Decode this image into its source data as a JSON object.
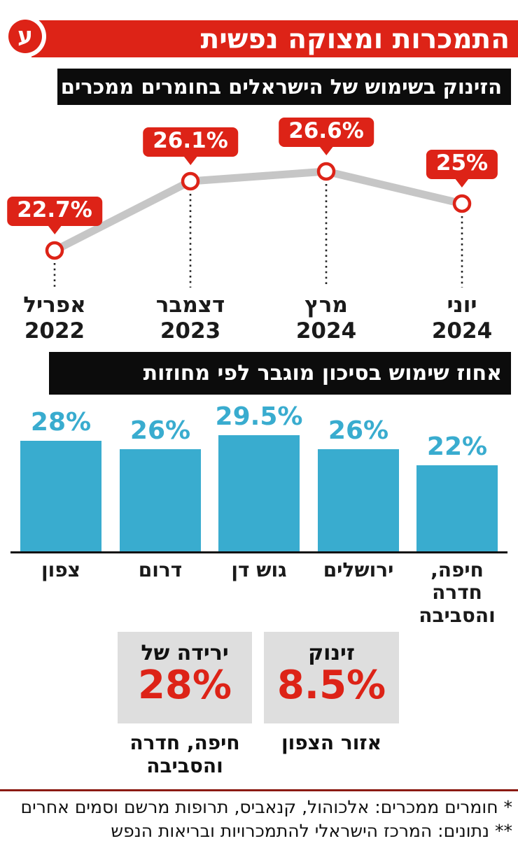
{
  "brand": {
    "logo_glyph": "ע",
    "title": "התמכרות ומצוקה נפשית"
  },
  "colors": {
    "red": "#dd2317",
    "dark_red": "#8b1a12",
    "blue": "#39accf",
    "line_gray": "#c6c6c6",
    "box_gray": "#dedede"
  },
  "chart_data": [
    {
      "type": "line",
      "title": "הזינוק בשימוש של הישראלים בחומרים ממכרים",
      "x": [
        "אפריל 2022",
        "דצמבר 2023",
        "מרץ 2024",
        "יוני 2024"
      ],
      "x_labels": [
        {
          "month": "אפריל",
          "year": "2022"
        },
        {
          "month": "דצמבר",
          "year": "2023"
        },
        {
          "month": "מרץ",
          "year": "2024"
        },
        {
          "month": "יוני",
          "year": "2024"
        }
      ],
      "values": [
        22.7,
        26.1,
        26.6,
        25
      ],
      "point_labels": [
        "22.7%",
        "26.1%",
        "26.6%",
        "25%"
      ],
      "ylim": [
        20,
        30
      ],
      "grid": false,
      "legend": "none",
      "marker": "circle-red-ring",
      "line_color": "#c6c6c6",
      "callout_color": "#dd2317"
    },
    {
      "type": "bar",
      "title": "אחוז שימוש בסיכון מוגבר לפי מחוזות",
      "categories": [
        "צפון",
        "דרום",
        "גוש דן",
        "ירושלים",
        "חיפה,\nחדרה\nוהסביבה"
      ],
      "values": [
        28,
        26,
        29.5,
        26,
        22
      ],
      "value_labels": [
        "28%",
        "26%",
        "29.5%",
        "26%",
        "22%"
      ],
      "ylim": [
        0,
        30
      ],
      "grid": false,
      "legend": "none",
      "bar_color": "#39accf"
    }
  ],
  "highlights": [
    {
      "prefix": "זינוק",
      "value": "8.5%",
      "caption": "אזור הצפון"
    },
    {
      "prefix": "ירידה של",
      "value": "28%",
      "caption": "חיפה, חדרה\nוהסביבה"
    }
  ],
  "footnotes": [
    "* חומרים ממכרים: אלכוהול, קנאביס, תרופות מרשם וסמים אחרים",
    "** נתונים: המרכז הישראלי להתמכרויות ובריאות הנפש"
  ]
}
